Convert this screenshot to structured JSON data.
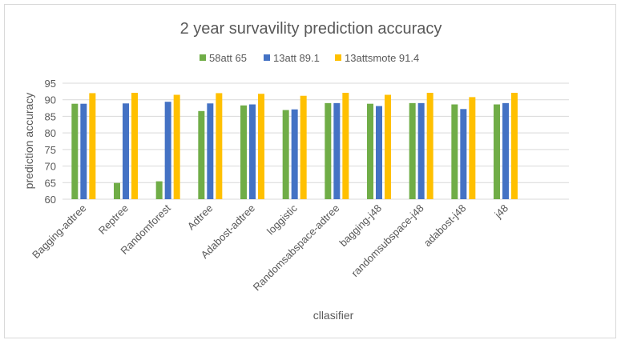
{
  "chart_data": {
    "type": "bar",
    "title": "2 year survavility prediction accuracy",
    "xlabel": "cllasifier",
    "ylabel": "prediction accuracy",
    "ylim": [
      60,
      95
    ],
    "yticks": [
      60,
      65,
      70,
      75,
      80,
      85,
      90,
      95
    ],
    "grid": true,
    "legend_position": "top",
    "categories": [
      "Bagging-adtree",
      "Reptree",
      "Randomforest",
      "Adtree",
      "Adabost-adtree",
      "loggistic",
      "Randomsabspace-adtree",
      "bagging-j48",
      "randomsubspace-j48",
      "adabost-j48",
      "j48"
    ],
    "series": [
      {
        "name": "58att 65",
        "color": "#70ad47",
        "values": [
          88.8,
          64.9,
          65.4,
          86.6,
          88.3,
          86.9,
          89.0,
          88.8,
          89.0,
          88.6,
          88.6
        ]
      },
      {
        "name": "13att 89.1",
        "color": "#4472c4",
        "values": [
          88.8,
          88.9,
          89.4,
          88.9,
          88.6,
          87.1,
          89.0,
          88.1,
          89.0,
          87.2,
          89.0
        ]
      },
      {
        "name": "13attsmote 91.4",
        "color": "#ffc000",
        "values": [
          92.0,
          92.1,
          91.5,
          92.0,
          91.8,
          91.2,
          92.1,
          91.5,
          92.1,
          90.8,
          92.1
        ]
      }
    ]
  }
}
